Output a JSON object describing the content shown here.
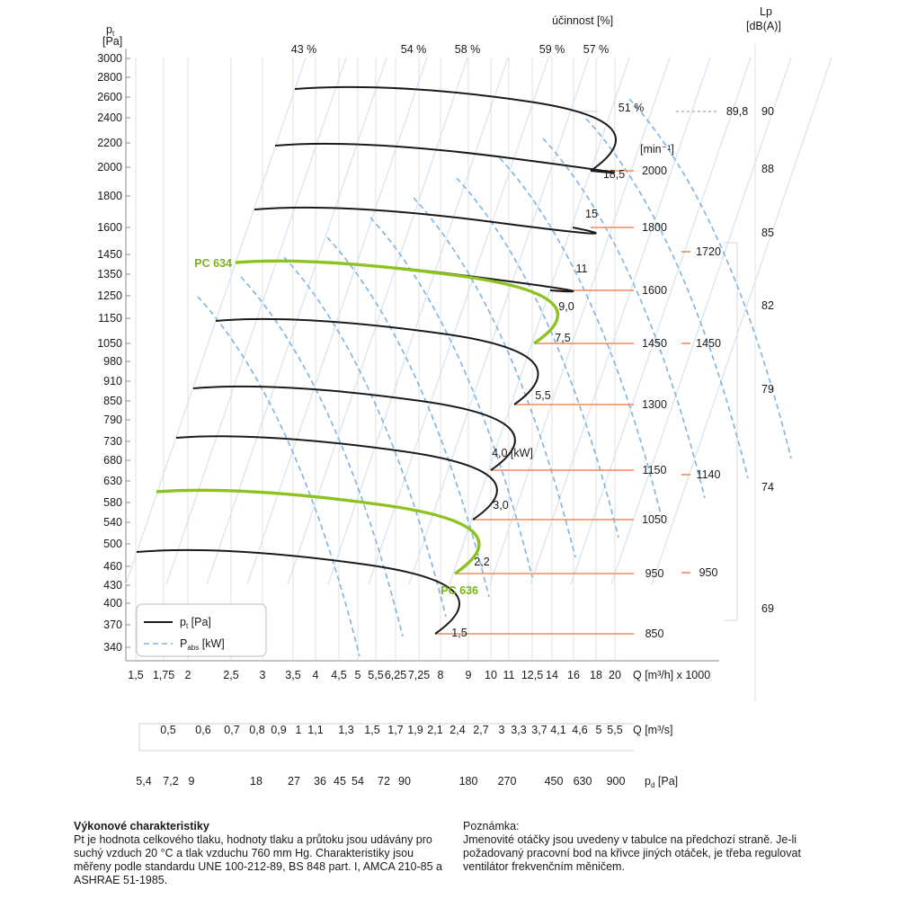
{
  "chart_data": {
    "type": "line",
    "title": "",
    "ylabel_symbol": "p",
    "ylabel_sub": "t",
    "ylabel_unit": "[Pa]",
    "y_ticks": [
      "3000",
      "2800",
      "2600",
      "2400",
      "2200",
      "2000",
      "1800",
      "1600",
      "1450",
      "1350",
      "1250",
      "1150",
      "1050",
      "980",
      "910",
      "850",
      "790",
      "730",
      "680",
      "630",
      "580",
      "540",
      "500",
      "460",
      "430",
      "400",
      "370",
      "340"
    ],
    "x_axis_q_m3h": {
      "label": "Q [m³/h] x 1000",
      "ticks": [
        "1,5",
        "1,75",
        "2",
        "2,5",
        "3",
        "3,5",
        "4",
        "4,5",
        "5",
        "5,5",
        "6,25",
        "7,25",
        "8",
        "9",
        "10",
        "11",
        "12,5",
        "14",
        "16",
        "18",
        "20"
      ]
    },
    "x_axis_q_m3s": {
      "label": "Q [m³/s]",
      "ticks": [
        "0,5",
        "0,6",
        "0,7",
        "0,8",
        "0,9",
        "1",
        "1,1",
        "1,3",
        "1,5",
        "1,7",
        "1,9",
        "2,1",
        "2,4",
        "2,7",
        "3",
        "3,3",
        "3,7",
        "4,1",
        "4,6",
        "5",
        "5,5"
      ]
    },
    "x_axis_pd": {
      "label_symbol": "p",
      "label_sub": "d",
      "label_unit": "[Pa]",
      "ticks": [
        "5,4",
        "7,2",
        "9",
        "18",
        "27",
        "36",
        "45",
        "54",
        "72",
        "90",
        "180",
        "270",
        "450",
        "630",
        "900"
      ]
    },
    "efficiency_label": "účinnost [%]",
    "efficiency_values": [
      "43 %",
      "54 %",
      "58 %",
      "59 %",
      "57 %",
      "51 %"
    ],
    "rpm_unit": "[min⁻¹]",
    "power_unit": "[kW]",
    "lp_label": "Lp",
    "lp_unit": "[dB(A)]",
    "lp_values": [
      "90",
      "88",
      "85",
      "82",
      "79",
      "74",
      "69"
    ],
    "lp_reference": "89,8",
    "curves": [
      {
        "rpm": "2000",
        "power": "18,5",
        "highlight": false,
        "label": ""
      },
      {
        "rpm": "1800",
        "power": "15",
        "highlight": false,
        "label": ""
      },
      {
        "rpm": "",
        "power": "11",
        "highlight": false,
        "label": ""
      },
      {
        "rpm": "1600",
        "power": "9,0",
        "highlight": false,
        "label": ""
      },
      {
        "rpm": "1450",
        "power": "7,5",
        "highlight": true,
        "label": "PC 634"
      },
      {
        "rpm": "1300",
        "power": "5,5",
        "highlight": false,
        "label": ""
      },
      {
        "rpm": "1150",
        "power": "4,0",
        "highlight": false,
        "label": ""
      },
      {
        "rpm": "1050",
        "power": "3,0",
        "highlight": false,
        "label": ""
      },
      {
        "rpm": "950",
        "power": "2,2",
        "highlight": true,
        "label": "PC 636"
      },
      {
        "rpm": "850",
        "power": "1,5",
        "highlight": false,
        "label": ""
      }
    ],
    "rpm_secondary": [
      "1720",
      "1450",
      "1140",
      "950"
    ],
    "legend": [
      {
        "symbol": "p",
        "sub": "t",
        "unit": "[Pa]",
        "style": "solid"
      },
      {
        "symbol": "P",
        "sub": "abs",
        "unit": "[kW]",
        "style": "dashed"
      }
    ],
    "colors": {
      "curve": "#1a1a1a",
      "highlight": "#8dc21f",
      "highlight_text": "#7ab317",
      "power_dashed": "#7fb3e0",
      "rpm_line": "#f08a5d",
      "grid": "#bfbfbf",
      "diag_grid": "#c9e0f3"
    }
  },
  "notes": {
    "left_title": "Výkonové charakteristiky",
    "left_text": "Pt je hodnota celkového tlaku, hodnoty tlaku a průtoku jsou udávány pro suchý vzduch 20 °C a tlak vzduchu 760 mm Hg. Charakteristiky jsou měřeny podle standardu UNE 100-212-89, BS 848 part. I, AMCA 210-85 a ASHRAE 51-1985.",
    "right_title": "Poznámka:",
    "right_text": "Jmenovité otáčky jsou uvedeny v tabulce na předchozí straně. Je-li požadovaný pracovní bod na křivce jiných otáček, je třeba regulovat ventilátor frekvenčním měničem."
  }
}
